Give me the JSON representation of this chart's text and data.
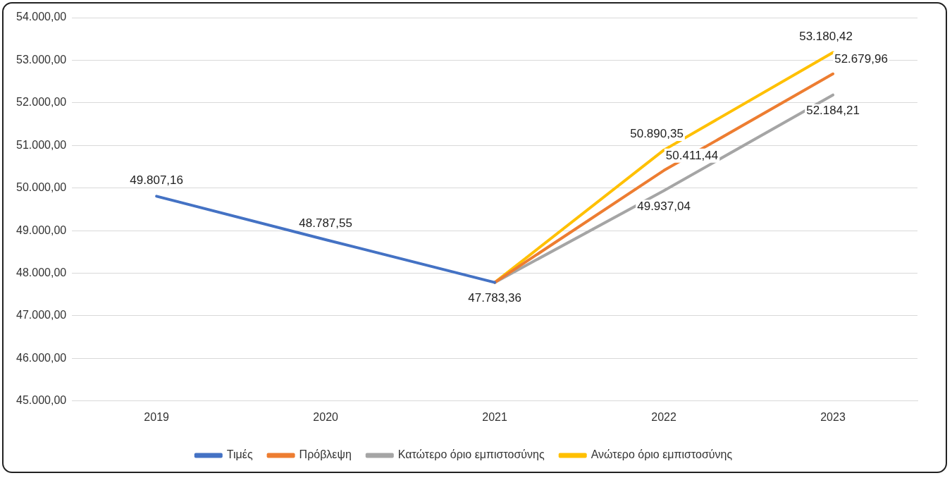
{
  "chart_data": {
    "type": "line",
    "categories": [
      "2019",
      "2020",
      "2021",
      "2022",
      "2023"
    ],
    "series": [
      {
        "name": "Τιμές",
        "color": "#4472c4",
        "values": [
          49807.16,
          48787.55,
          47783.36,
          null,
          null
        ],
        "value_labels": [
          "49.807,16",
          "48.787,55",
          "47.783,36",
          null,
          null
        ]
      },
      {
        "name": "Πρόβλεψη",
        "color": "#ed7d31",
        "values": [
          null,
          null,
          47783.36,
          50411.44,
          52679.96
        ],
        "value_labels": [
          null,
          null,
          null,
          "50.411,44",
          "52.679,96"
        ]
      },
      {
        "name": "Κατώτερο όριο εμπιστοσύνης",
        "color": "#a5a5a5",
        "values": [
          null,
          null,
          47783.36,
          49937.04,
          52184.21
        ],
        "value_labels": [
          null,
          null,
          null,
          "49.937,04",
          "52.184,21"
        ]
      },
      {
        "name": "Ανώτερο όριο εμπιστοσύνης",
        "color": "#ffc000",
        "values": [
          null,
          null,
          47783.36,
          50890.35,
          53180.42
        ],
        "value_labels": [
          null,
          null,
          null,
          "50.890,35",
          "53.180,42"
        ]
      }
    ],
    "ylim": [
      45000,
      54000
    ],
    "yticks": [
      {
        "value": 45000,
        "label": "45.000,00"
      },
      {
        "value": 46000,
        "label": "46.000,00"
      },
      {
        "value": 47000,
        "label": "47.000,00"
      },
      {
        "value": 48000,
        "label": "48.000,00"
      },
      {
        "value": 49000,
        "label": "49.000,00"
      },
      {
        "value": 50000,
        "label": "50.000,00"
      },
      {
        "value": 51000,
        "label": "51.000,00"
      },
      {
        "value": 52000,
        "label": "52.000,00"
      },
      {
        "value": 53000,
        "label": "53.000,00"
      },
      {
        "value": 54000,
        "label": "54.000,00"
      }
    ],
    "grid": "y",
    "legend": "bottom",
    "marker": "none",
    "line_style": "solid"
  }
}
